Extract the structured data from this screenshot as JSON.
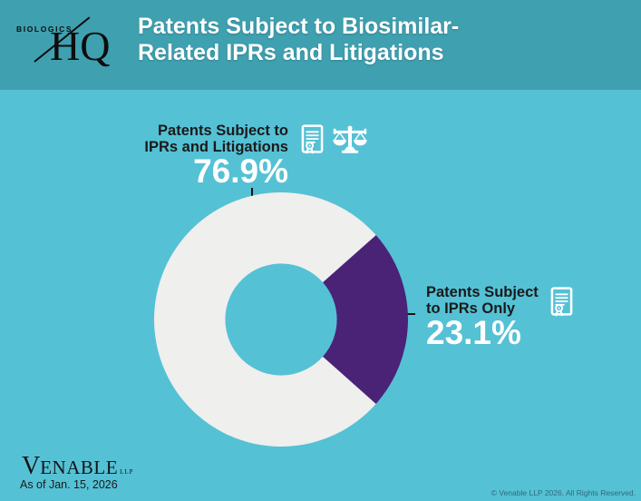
{
  "header": {
    "logo_brand": "BIOLOGICS",
    "logo_hq": "HQ",
    "title_line1": "Patents Subject to Biosimilar-",
    "title_line2": "Related IPRs and Litigations"
  },
  "callouts": {
    "left": {
      "line1": "Patents Subject to",
      "line2": "IPRs and Litigations",
      "value": "76.9%"
    },
    "right": {
      "line1": "Patents Subject",
      "line2": "to IPRs Only",
      "value": "23.1%"
    }
  },
  "icons": {
    "left_group": [
      "certificate-icon",
      "scales-icon"
    ],
    "right_group": [
      "certificate-icon"
    ]
  },
  "footer": {
    "venable_initial": "V",
    "venable_rest": "ENABLE",
    "venable_llp": "LLP",
    "as_of": "As of Jan. 15, 2026",
    "copyright": "© Venable LLP 2026. All Rights Reserved."
  },
  "colors": {
    "header_bg": "#3fa0b0",
    "body_bg": "#55c1d5",
    "slice_litigations": "#efefed",
    "slice_iprs_only": "#4a2377",
    "label_text": "#1a1a1a",
    "value_text": "#ffffff",
    "leader_line": "#111111"
  },
  "chart_data": {
    "type": "pie",
    "subtype": "donut",
    "title": "Patents Subject to Biosimilar-Related IPRs and Litigations",
    "slices": [
      {
        "label": "Patents Subject to IPRs and Litigations",
        "value": 76.9,
        "color": "#efefed"
      },
      {
        "label": "Patents Subject to IPRs Only",
        "value": 23.1,
        "color": "#4a2377"
      }
    ],
    "units": "percent",
    "donut_hole_ratio": 0.44,
    "start_angle_deg": 131.6,
    "legend_position": "callout-labels",
    "as_of": "Jan. 15, 2026"
  }
}
